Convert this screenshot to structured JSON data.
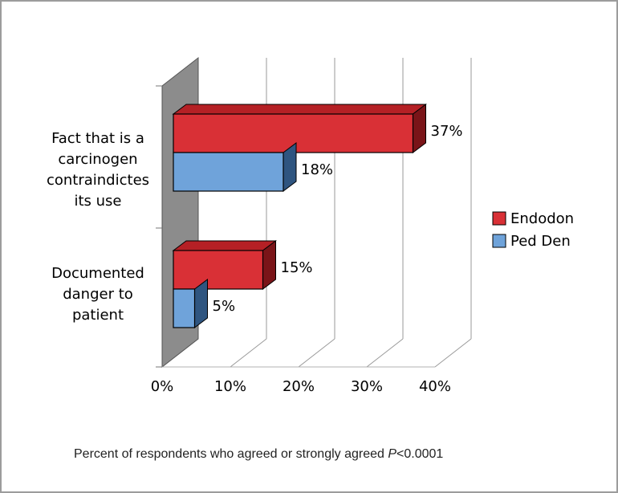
{
  "chart_data": {
    "type": "bar",
    "orientation": "horizontal",
    "three_d": true,
    "categories": [
      [
        "Fact that is a",
        "carcinogen",
        "contraindictes",
        "its use"
      ],
      [
        "Documented",
        "danger to",
        "patient"
      ]
    ],
    "series": [
      {
        "name": "Endodon",
        "values": [
          37,
          15
        ],
        "labels": [
          "37%",
          "15%"
        ],
        "color": "#d93036",
        "top": "#b52025",
        "side": "#7a1418"
      },
      {
        "name": "Ped Den",
        "values": [
          18,
          5
        ],
        "labels": [
          "18%",
          "5%"
        ],
        "color": "#6fa3da",
        "top": "#4a7bb5",
        "side": "#2f5580"
      }
    ],
    "x_ticks": [
      "0%",
      "10%",
      "20%",
      "30%",
      "40%"
    ],
    "xlim": [
      0,
      40
    ],
    "legend_position": "right",
    "grid": true
  },
  "caption": {
    "text": "Percent of respondents who agreed or strongly agreed",
    "p_symbol": "P",
    "p_value": "<0.0001"
  }
}
